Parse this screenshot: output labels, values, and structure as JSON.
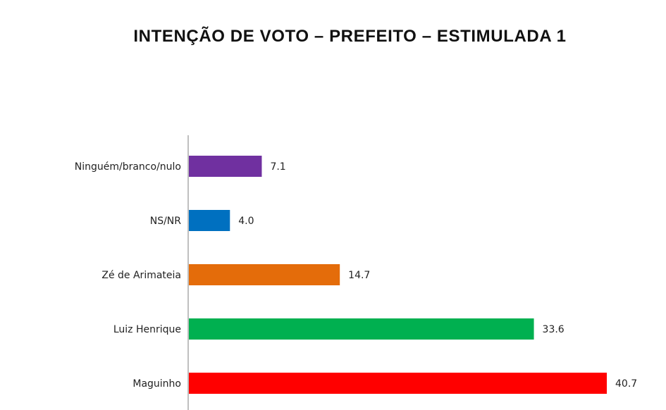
{
  "chart_data": {
    "type": "bar",
    "orientation": "horizontal",
    "title": "INTENÇÃO DE VOTO – PREFEITO – ESTIMULADA 1",
    "categories": [
      "Ninguém/branco/nulo",
      "NS/NR",
      "Zé de Arimateia",
      "Luiz Henrique",
      "Maguinho"
    ],
    "values": [
      7.1,
      4.0,
      14.7,
      33.6,
      40.7
    ],
    "value_labels": [
      "7.1",
      "4.0",
      "14.7",
      "33.6",
      "40.7"
    ],
    "colors": [
      "#7030a0",
      "#0070c0",
      "#e46c0a",
      "#00b050",
      "#ff0000"
    ],
    "xlim": [
      0,
      40.7
    ],
    "grid": false,
    "legend": "none"
  }
}
